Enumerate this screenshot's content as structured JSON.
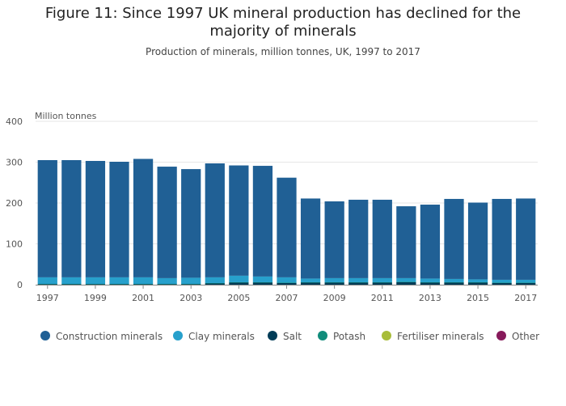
{
  "chart_data": {
    "type": "bar",
    "stacked": true,
    "title": "Figure 11: Since 1997 UK mineral production has declined for the majority of minerals",
    "subtitle": "Production of minerals, million tonnes, UK, 1997 to 2017",
    "ylabel": "Million tonnes",
    "xlabel": "",
    "ylim": [
      0,
      400
    ],
    "yticks": [
      0,
      100,
      200,
      300,
      400
    ],
    "grid": true,
    "legend_position": "bottom",
    "categories": [
      "1997",
      "1998",
      "1999",
      "2000",
      "2001",
      "2002",
      "2003",
      "2004",
      "2005",
      "2006",
      "2007",
      "2008",
      "2009",
      "2010",
      "2011",
      "2012",
      "2013",
      "2014",
      "2015",
      "2016",
      "2017"
    ],
    "xtick_labels": [
      "1997",
      "1999",
      "2001",
      "2003",
      "2005",
      "2007",
      "2009",
      "2011",
      "2013",
      "2015",
      "2017"
    ],
    "series": [
      {
        "name": "Salt",
        "color": "#003c57",
        "values": [
          1,
          1,
          1,
          1,
          1,
          1,
          1,
          3,
          5,
          5,
          4,
          5,
          5,
          5,
          5,
          6,
          5,
          5,
          5,
          4,
          4
        ]
      },
      {
        "name": "Potash",
        "color": "#118c7b",
        "values": [
          1,
          1,
          1,
          1,
          1,
          1,
          1,
          1,
          1,
          1,
          1,
          1,
          1,
          1,
          1,
          1,
          1,
          1,
          1,
          1,
          1
        ]
      },
      {
        "name": "Fertiliser minerals",
        "color": "#a8bd3a",
        "values": [
          0,
          0,
          0,
          0,
          0,
          0,
          0,
          0,
          0,
          0,
          0,
          0,
          0,
          0,
          0,
          0,
          0,
          0,
          0,
          0,
          0
        ]
      },
      {
        "name": "Other",
        "color": "#871a5b",
        "values": [
          0,
          0,
          0,
          0,
          0,
          0,
          0,
          0,
          0,
          0,
          0,
          0,
          0,
          0,
          0,
          0,
          0,
          0,
          0,
          0,
          0
        ]
      },
      {
        "name": "Clay minerals",
        "color": "#27a0cc",
        "values": [
          16,
          16,
          16,
          16,
          16,
          14,
          15,
          14,
          16,
          14,
          13,
          9,
          10,
          10,
          10,
          9,
          9,
          8,
          7,
          7,
          7
        ]
      },
      {
        "name": "Construction minerals",
        "color": "#206095",
        "values": [
          287,
          287,
          285,
          283,
          290,
          273,
          266,
          279,
          270,
          271,
          244,
          196,
          188,
          192,
          192,
          176,
          181,
          196,
          188,
          198,
          199
        ]
      }
    ]
  },
  "legend": [
    {
      "label": "Construction minerals",
      "color": "#206095"
    },
    {
      "label": "Clay minerals",
      "color": "#27a0cc"
    },
    {
      "label": "Salt",
      "color": "#003c57"
    },
    {
      "label": "Potash",
      "color": "#118c7b"
    },
    {
      "label": "Fertiliser minerals",
      "color": "#a8bd3a"
    },
    {
      "label": "Other",
      "color": "#871a5b"
    }
  ]
}
